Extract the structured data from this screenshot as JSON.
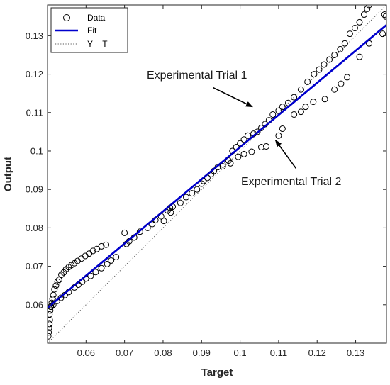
{
  "chart_data": {
    "type": "scatter",
    "xlabel": "Target",
    "ylabel": "Output",
    "xlim": [
      0.05,
      0.138
    ],
    "ylim": [
      0.05,
      0.138
    ],
    "xticks": [
      0.06,
      0.07,
      0.08,
      0.09,
      0.1,
      0.11,
      0.12,
      0.13
    ],
    "yticks": [
      0.06,
      0.07,
      0.08,
      0.09,
      0.1,
      0.11,
      0.12,
      0.13
    ],
    "xtick_labels": [
      "0.06",
      "0.07",
      "0.08",
      "0.09",
      "0.1",
      "0.11",
      "0.12",
      "0.13"
    ],
    "ytick_labels": [
      "0.06",
      "0.07",
      "0.08",
      "0.09",
      "0.1",
      "0.11",
      "0.12",
      "0.13"
    ],
    "grid": false,
    "legend_position": "top-left",
    "series": [
      {
        "name": "Data",
        "kind": "markers",
        "marker": "open-circle",
        "color": "#000000",
        "points": [
          [
            0.0502,
            0.0518
          ],
          [
            0.0503,
            0.0528
          ],
          [
            0.0504,
            0.054
          ],
          [
            0.0505,
            0.055
          ],
          [
            0.0506,
            0.056
          ],
          [
            0.0505,
            0.0575
          ],
          [
            0.0507,
            0.0585
          ],
          [
            0.0509,
            0.0595
          ],
          [
            0.0511,
            0.0605
          ],
          [
            0.0513,
            0.0615
          ],
          [
            0.0515,
            0.0625
          ],
          [
            0.0518,
            0.064
          ],
          [
            0.0522,
            0.065
          ],
          [
            0.0526,
            0.066
          ],
          [
            0.053,
            0.0665
          ],
          [
            0.0536,
            0.0678
          ],
          [
            0.0542,
            0.0684
          ],
          [
            0.0548,
            0.0692
          ],
          [
            0.0555,
            0.0698
          ],
          [
            0.0562,
            0.0703
          ],
          [
            0.057,
            0.0708
          ],
          [
            0.0578,
            0.0714
          ],
          [
            0.0588,
            0.072
          ],
          [
            0.0598,
            0.0727
          ],
          [
            0.0608,
            0.0733
          ],
          [
            0.0618,
            0.074
          ],
          [
            0.0628,
            0.0745
          ],
          [
            0.064,
            0.0752
          ],
          [
            0.0652,
            0.0756
          ],
          [
            0.0508,
            0.0595
          ],
          [
            0.0515,
            0.06
          ],
          [
            0.0525,
            0.061
          ],
          [
            0.0535,
            0.0618
          ],
          [
            0.0545,
            0.0625
          ],
          [
            0.0555,
            0.0633
          ],
          [
            0.057,
            0.0645
          ],
          [
            0.058,
            0.0652
          ],
          [
            0.059,
            0.066
          ],
          [
            0.06,
            0.0668
          ],
          [
            0.0612,
            0.0675
          ],
          [
            0.0625,
            0.0685
          ],
          [
            0.064,
            0.0695
          ],
          [
            0.0655,
            0.0706
          ],
          [
            0.0665,
            0.0715
          ],
          [
            0.0678,
            0.0724
          ],
          [
            0.07,
            0.0787
          ],
          [
            0.0705,
            0.0758
          ],
          [
            0.0712,
            0.0765
          ],
          [
            0.0725,
            0.0775
          ],
          [
            0.074,
            0.079
          ],
          [
            0.076,
            0.08
          ],
          [
            0.0772,
            0.081
          ],
          [
            0.078,
            0.082
          ],
          [
            0.0795,
            0.083
          ],
          [
            0.0802,
            0.0818
          ],
          [
            0.0812,
            0.0845
          ],
          [
            0.0818,
            0.0852
          ],
          [
            0.082,
            0.084
          ],
          [
            0.0825,
            0.0855
          ],
          [
            0.0845,
            0.0865
          ],
          [
            0.086,
            0.088
          ],
          [
            0.0875,
            0.089
          ],
          [
            0.0888,
            0.09
          ],
          [
            0.09,
            0.0915
          ],
          [
            0.0905,
            0.0922
          ],
          [
            0.0915,
            0.093
          ],
          [
            0.0925,
            0.094
          ],
          [
            0.0932,
            0.0948
          ],
          [
            0.0942,
            0.0958
          ],
          [
            0.0955,
            0.0965
          ],
          [
            0.097,
            0.0975
          ],
          [
            0.098,
            0.1
          ],
          [
            0.099,
            0.101
          ],
          [
            0.1,
            0.102
          ],
          [
            0.101,
            0.103
          ],
          [
            0.102,
            0.104
          ],
          [
            0.1035,
            0.1045
          ],
          [
            0.1045,
            0.105
          ],
          [
            0.1055,
            0.106
          ],
          [
            0.1065,
            0.107
          ],
          [
            0.1075,
            0.108
          ],
          [
            0.1085,
            0.1095
          ],
          [
            0.11,
            0.1105
          ],
          [
            0.111,
            0.1115
          ],
          [
            0.1125,
            0.1125
          ],
          [
            0.114,
            0.114
          ],
          [
            0.1158,
            0.116
          ],
          [
            0.1175,
            0.118
          ],
          [
            0.1192,
            0.12
          ],
          [
            0.1205,
            0.1212
          ],
          [
            0.1218,
            0.1225
          ],
          [
            0.1232,
            0.1238
          ],
          [
            0.1245,
            0.125
          ],
          [
            0.126,
            0.1265
          ],
          [
            0.1272,
            0.128
          ],
          [
            0.1285,
            0.1305
          ],
          [
            0.1298,
            0.132
          ],
          [
            0.131,
            0.1335
          ],
          [
            0.1322,
            0.1355
          ],
          [
            0.133,
            0.137
          ],
          [
            0.1335,
            0.138
          ],
          [
            0.1375,
            0.1355
          ],
          [
            0.1378,
            0.135
          ],
          [
            0.0955,
            0.096
          ],
          [
            0.0975,
            0.0968
          ],
          [
            0.0995,
            0.0985
          ],
          [
            0.101,
            0.0992
          ],
          [
            0.103,
            0.0998
          ],
          [
            0.1055,
            0.101
          ],
          [
            0.1068,
            0.1012
          ],
          [
            0.11,
            0.104
          ],
          [
            0.111,
            0.1058
          ],
          [
            0.114,
            0.1095
          ],
          [
            0.1158,
            0.1102
          ],
          [
            0.117,
            0.1115
          ],
          [
            0.119,
            0.1128
          ],
          [
            0.122,
            0.1135
          ],
          [
            0.1245,
            0.116
          ],
          [
            0.1262,
            0.1175
          ],
          [
            0.1278,
            0.1192
          ],
          [
            0.131,
            0.1245
          ],
          [
            0.1335,
            0.128
          ],
          [
            0.137,
            0.1305
          ]
        ]
      },
      {
        "name": "Fit",
        "kind": "line",
        "color": "#0000cd",
        "x": [
          0.05,
          0.138
        ],
        "y": [
          0.0592,
          0.1328
        ]
      },
      {
        "name": "Y = T",
        "kind": "line",
        "style": "dotted",
        "color": "#555555",
        "x": [
          0.05,
          0.138
        ],
        "y": [
          0.05,
          0.138
        ]
      }
    ],
    "annotations": [
      {
        "text": "Experimental Trial 1",
        "arrow_tip": [
          0.1032,
          0.1115
        ],
        "arrow_tail": [
          0.093,
          0.1165
        ]
      },
      {
        "text": "Experimental Trial 2",
        "arrow_tip": [
          0.1092,
          0.1028
        ],
        "arrow_tail": [
          0.1145,
          0.0955
        ]
      }
    ]
  }
}
